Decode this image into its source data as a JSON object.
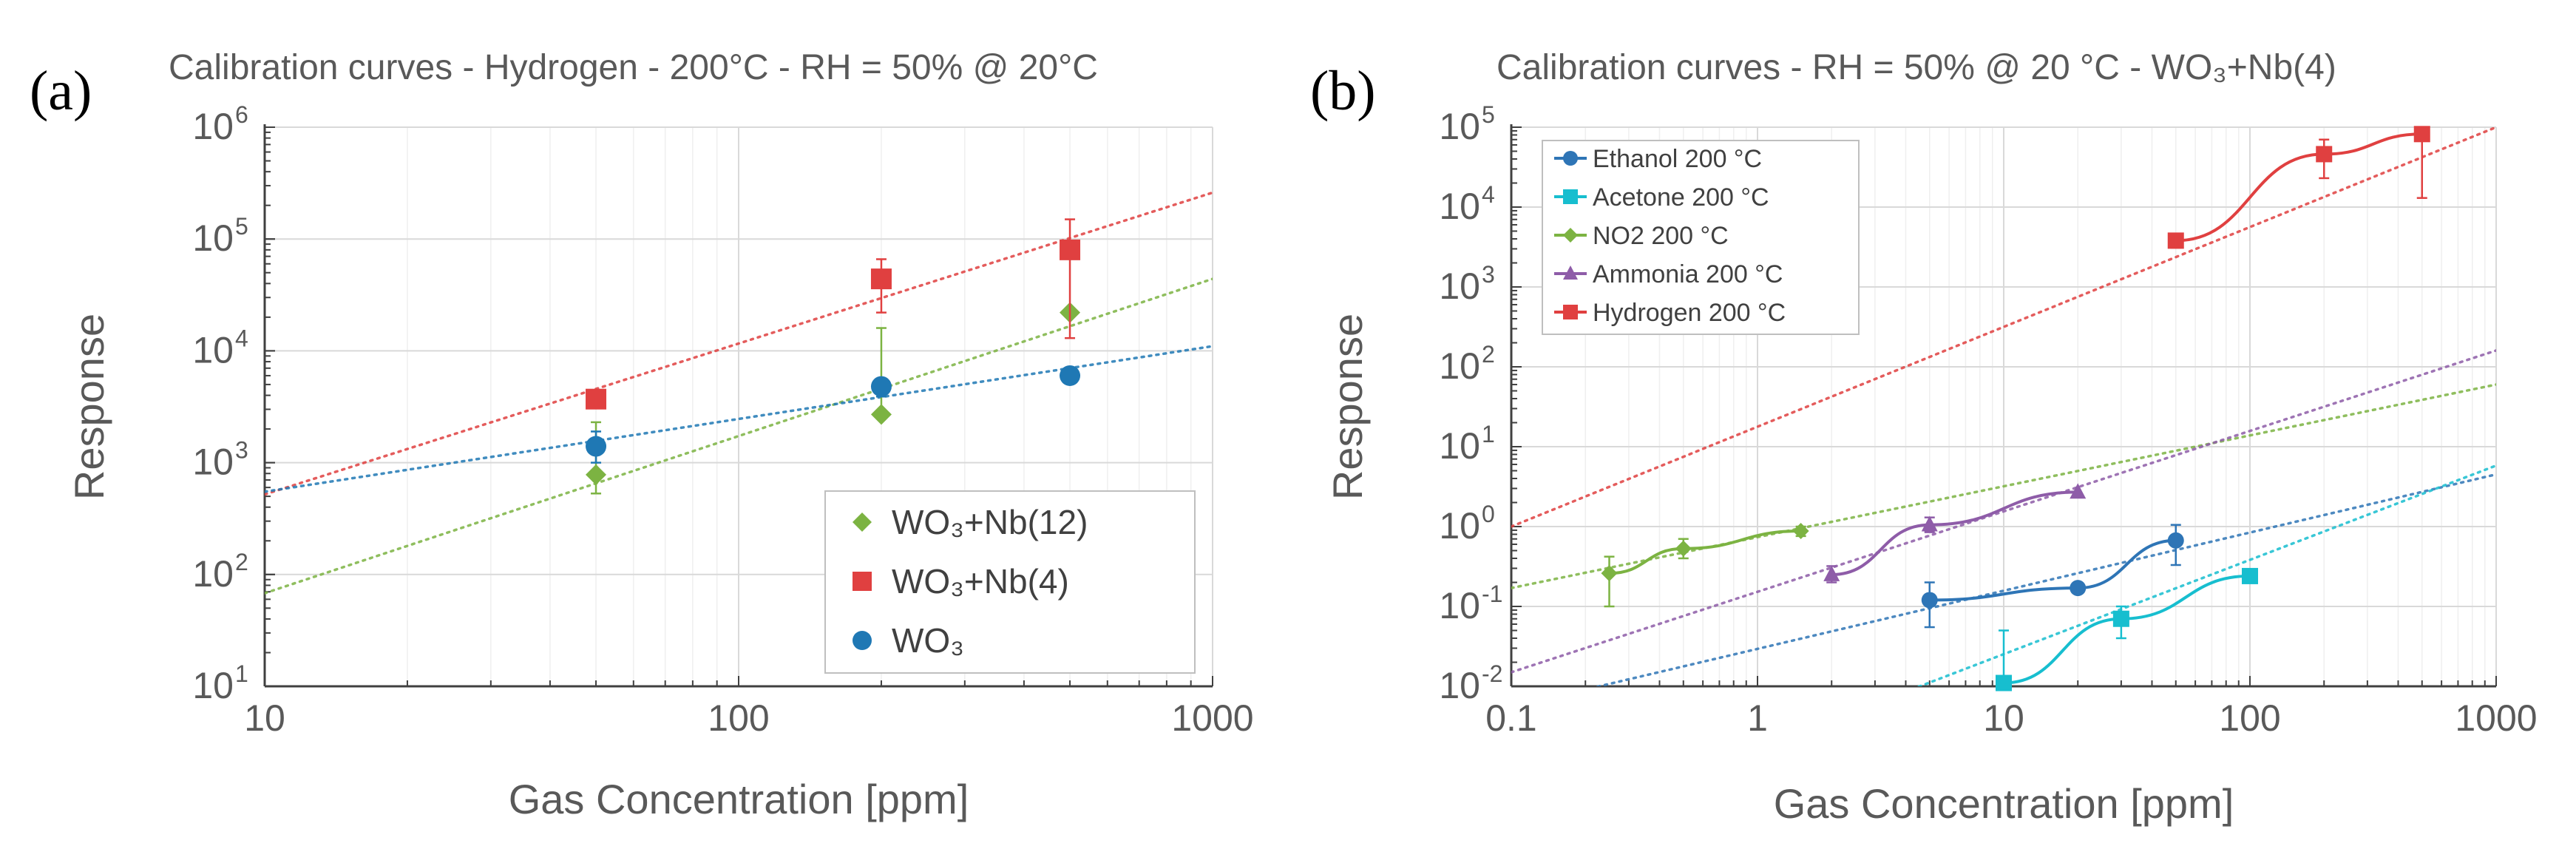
{
  "panels": {
    "a": {
      "letter": "(a)",
      "title": "Calibration curves - Hydrogen - 200°C - RH = 50% @ 20°C"
    },
    "b": {
      "letter": "(b)",
      "title": "Calibration curves - RH = 50% @ 20 °C -  WO₃+Nb(4)"
    }
  },
  "chart_data": [
    {
      "type": "scatter",
      "title": "Calibration curves - Hydrogen - 200°C - RH = 50% @ 20°C",
      "xlabel": "Gas Concentration [ppm]",
      "ylabel": "Response",
      "xscale": "log",
      "yscale": "log",
      "xlim": [
        10,
        1000
      ],
      "ylim": [
        10,
        1000000
      ],
      "xticks": [
        "10",
        "100",
        "1000"
      ],
      "yticks": [
        {
          "base": "10",
          "exp": "1"
        },
        {
          "base": "10",
          "exp": "2"
        },
        {
          "base": "10",
          "exp": "3"
        },
        {
          "base": "10",
          "exp": "4"
        },
        {
          "base": "10",
          "exp": "5"
        },
        {
          "base": "10",
          "exp": "6"
        }
      ],
      "grid": true,
      "legend_position": "bottom-right",
      "series": [
        {
          "name": "WO₃+Nb(12)",
          "color": "#7cb342",
          "marker": "diamond",
          "x": [
            50,
            200,
            500
          ],
          "y": [
            780,
            2700,
            22000
          ],
          "err_low": [
            530,
            2700,
            22000
          ],
          "err_high": [
            2300,
            16000,
            22000
          ],
          "trend": {
            "style": "dotted",
            "x": [
              10,
              1000
            ],
            "y": [
              68,
              44000
            ]
          }
        },
        {
          "name": "WO₃+Nb(4)",
          "color": "#e04040",
          "marker": "square",
          "x": [
            50,
            200,
            500
          ],
          "y": [
            3700,
            44000,
            80000
          ],
          "err_low": [
            3200,
            22000,
            13000
          ],
          "err_high": [
            4200,
            66000,
            150000
          ],
          "trend": {
            "style": "dotted",
            "x": [
              10,
              1000
            ],
            "y": [
              520,
              260000
            ]
          }
        },
        {
          "name": "WO₃",
          "color": "#1f78b4",
          "marker": "circle",
          "x": [
            50,
            200,
            500
          ],
          "y": [
            1400,
            4800,
            6000
          ],
          "err_low": [
            1000,
            3900,
            6000
          ],
          "err_high": [
            1900,
            5300,
            6000
          ],
          "trend": {
            "style": "dotted",
            "x": [
              10,
              1000
            ],
            "y": [
              550,
              11000
            ]
          }
        }
      ]
    },
    {
      "type": "line",
      "title": "Calibration curves - RH = 50% @ 20 °C -  WO₃+Nb(4)",
      "xlabel": "Gas Concentration [ppm]",
      "ylabel": "Response",
      "xscale": "log",
      "yscale": "log",
      "xlim": [
        0.1,
        1000
      ],
      "ylim": [
        0.01,
        100000
      ],
      "xticks": [
        "0.1",
        "1",
        "10",
        "100",
        "1000"
      ],
      "yticks": [
        {
          "base": "10",
          "exp": "-2"
        },
        {
          "base": "10",
          "exp": "-1"
        },
        {
          "base": "10",
          "exp": "0"
        },
        {
          "base": "10",
          "exp": "1"
        },
        {
          "base": "10",
          "exp": "2"
        },
        {
          "base": "10",
          "exp": "3"
        },
        {
          "base": "10",
          "exp": "4"
        },
        {
          "base": "10",
          "exp": "5"
        }
      ],
      "grid": true,
      "legend_position": "top-left",
      "series": [
        {
          "name": "Ethanol 200 °C",
          "color": "#2e75b6",
          "marker": "circle",
          "x": [
            5,
            20,
            50
          ],
          "y": [
            0.12,
            0.17,
            0.67
          ],
          "err_low": [
            0.055,
            0.17,
            0.33
          ],
          "err_high": [
            0.2,
            0.17,
            1.05
          ],
          "trend": {
            "style": "dotted",
            "x": [
              0.1,
              1000
            ],
            "y": [
              0.0055,
              4.5
            ]
          }
        },
        {
          "name": "Acetone 200 °C",
          "color": "#17becf",
          "marker": "square",
          "x": [
            10,
            30,
            100
          ],
          "y": [
            0.011,
            0.07,
            0.24
          ],
          "err_low": [
            0.011,
            0.04,
            0.2
          ],
          "err_high": [
            0.05,
            0.1,
            0.28
          ],
          "trend": {
            "style": "dotted",
            "x": [
              0.1,
              1000
            ],
            "y": [
              0.00011,
              5.8
            ]
          }
        },
        {
          "name": "NO2 200 °C",
          "color": "#7cb342",
          "marker": "diamond",
          "x": [
            0.25,
            0.5,
            1.5
          ],
          "y": [
            0.26,
            0.53,
            0.88
          ],
          "err_low": [
            0.1,
            0.4,
            0.76
          ],
          "err_high": [
            0.42,
            0.7,
            1.0
          ],
          "trend": {
            "style": "dotted",
            "x": [
              0.1,
              1000
            ],
            "y": [
              0.17,
              60
            ]
          }
        },
        {
          "name": "Ammonia 200 °C",
          "color": "#8e5ca8",
          "marker": "triangle",
          "x": [
            2,
            5,
            20
          ],
          "y": [
            0.25,
            1.05,
            2.7
          ],
          "err_low": [
            0.2,
            0.85,
            2.7
          ],
          "err_high": [
            0.32,
            1.3,
            2.7
          ],
          "trend": {
            "style": "dotted",
            "x": [
              0.1,
              1000
            ],
            "y": [
              0.015,
              160
            ]
          }
        },
        {
          "name": "Hydrogen 200 °C",
          "color": "#e04040",
          "marker": "square",
          "x": [
            50,
            200,
            500
          ],
          "y": [
            3800,
            46000,
            82000
          ],
          "err_low": [
            3100,
            23000,
            13000
          ],
          "err_high": [
            4600,
            70000,
            82000
          ],
          "trend": {
            "style": "dotted",
            "x": [
              0.1,
              1000
            ],
            "y": [
              1.0,
              100000
            ]
          }
        }
      ]
    }
  ]
}
